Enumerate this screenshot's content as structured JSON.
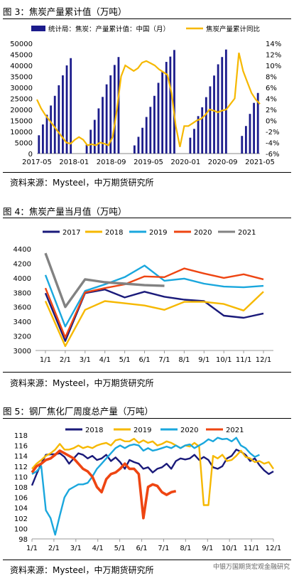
{
  "charts": [
    {
      "title": "图 3：焦炭产量累计值（万吨）",
      "source": "资料来源：Mysteel，中万期货研究所",
      "chart_data": {
        "type": "bar+line",
        "series": [
          {
            "name": "统计局：焦炭：产量累计值：中国（月）",
            "kind": "bar",
            "axis": "left",
            "color": "#1c1c8c",
            "values": [
              8300,
              13200,
              17600,
              21800,
              26200,
              31000,
              35500,
              40000,
              43300,
              null,
              null,
              null,
              4000,
              10800,
              15300,
              20500,
              25700,
              31400,
              35500,
              40200,
              43800,
              null,
              null,
              null,
              3700,
              7600,
              11700,
              16600,
              21200,
              26200,
              32100,
              37000,
              41600,
              44000,
              47000,
              null,
              null,
              null,
              7200,
              11200,
              17000,
              21000,
              25600,
              30500,
              35400,
              40500,
              43800,
              47200,
              null,
              null,
              null,
              8000,
              12500,
              18000,
              23000,
              27500
            ]
          },
          {
            "name": "焦炭产量累计同比",
            "kind": "line",
            "axis": "right",
            "color": "#f6b800",
            "values": [
              3.8,
              2.2,
              1.0,
              0.0,
              -1.0,
              -2.0,
              -3.0,
              -4.0,
              -4.2,
              -3.5,
              -3.0,
              -3.5,
              -4.5,
              -4.3,
              -4.5,
              -4.0,
              -4.2,
              -4.5,
              -3.0,
              2.0,
              8.0,
              10.0,
              9.5,
              9.0,
              9.5,
              10.5,
              10.8,
              10.4,
              10.0,
              9.3,
              8.8,
              8.3,
              5.0,
              -1.0,
              -4.8,
              -1.0,
              -1.0,
              -0.5,
              0.0,
              0.3,
              1.0,
              2.0,
              1.8,
              1.5,
              1.8,
              2.0,
              3.0,
              4.0,
              12.3,
              9.0,
              7.0,
              5.0,
              3.8,
              3.0
            ]
          }
        ],
        "x_tick_labels": [
          "2017-05",
          "2018-01",
          "2018-09",
          "2019-05",
          "2020-01",
          "2020-09",
          "2021-05"
        ],
        "y_left": {
          "min": 0,
          "max": 50000,
          "step": 5000
        },
        "y_right": {
          "min": -6,
          "max": 14,
          "step": 2,
          "suffix": "%"
        }
      }
    },
    {
      "title": "图 4：焦炭产量当月值（万吨）",
      "source": "资料来源：Mysteel，中万期货研究所",
      "chart_data": {
        "type": "line",
        "categories": [
          "1/1",
          "2/1",
          "3/1",
          "4/1",
          "5/1",
          "6/1",
          "7/1",
          "8/1",
          "9/1",
          "10/1",
          "11/1",
          "12/1"
        ],
        "ylim": [
          3000,
          4400
        ],
        "yticks": [
          3000,
          3200,
          3400,
          3600,
          3800,
          4000,
          4200,
          4400
        ],
        "series": [
          {
            "name": "2017",
            "color": "#1a1a7a",
            "values": [
              3790,
              3130,
              3790,
              3840,
              3730,
              3810,
              3740,
              3700,
              3680,
              3480,
              3450,
              3510
            ]
          },
          {
            "name": "2018",
            "color": "#f6b800",
            "values": [
              3680,
              3060,
              3560,
              3680,
              3650,
              3620,
              3560,
              3670,
              3670,
              3640,
              3550,
              3810
            ]
          },
          {
            "name": "2019",
            "color": "#1aa7dd",
            "values": [
              4040,
              3330,
              3820,
              3910,
              4010,
              4170,
              3960,
              3990,
              3920,
              3880,
              3870,
              3890
            ]
          },
          {
            "name": "2020",
            "color": "#ee4512",
            "values": [
              3860,
              3180,
              3800,
              3860,
              3910,
              4020,
              4010,
              4130,
              4060,
              4000,
              4050,
              3980
            ]
          },
          {
            "name": "2021",
            "color": "#828282",
            "values": [
              4340,
              3600,
              3980,
              3940,
              3920,
              3900,
              3890,
              null,
              null,
              null,
              null,
              null
            ]
          }
        ]
      }
    },
    {
      "title": "图 5：钢厂焦化厂周度总产量（万吨）",
      "source": "资料来源：Mysteel，中万期货研究所",
      "watermark": "中银万国期货宏观金融研究",
      "chart_data": {
        "type": "line",
        "x_tick_labels": [
          "1/1",
          "2/1",
          "3/1",
          "4/1",
          "5/1",
          "6/1",
          "7/1",
          "8/1",
          "9/1",
          "10/1",
          "11/1",
          "12/1"
        ],
        "ylim": [
          98,
          118
        ],
        "yticks": [
          98,
          100,
          102,
          104,
          106,
          108,
          110,
          112,
          114,
          116,
          118
        ],
        "series": [
          {
            "name": "2018",
            "color": "#1a1a7a",
            "values": [
              108.3,
              110.5,
              112.5,
              114.2,
              114.3,
              114.3,
              114.5,
              113.8,
              112.5,
              113.5,
              114.5,
              114.2,
              113.5,
              114.0,
              113.2,
              113.5,
              114.2,
              113.0,
              113.7,
              112.8,
              111.5,
              113.2,
              112.8,
              112.5,
              111.5,
              111.8,
              110.8,
              111.5,
              111.8,
              112.5,
              111.5,
              113.0,
              113.5,
              113.3,
              113.5,
              114.2,
              113.2,
              113.8,
              113.2,
              111.8,
              111.5,
              112.0,
              113.5,
              114.0,
              115.2,
              114.8,
              114.2,
              113.0,
              113.5,
              112.2,
              111.2,
              110.5,
              111.0
            ]
          },
          {
            "name": "2019",
            "color": "#f6b800",
            "values": [
              111.5,
              112.5,
              113.2,
              114.0,
              114.5,
              115.2,
              116.3,
              115.2,
              115.2,
              115.5,
              116.0,
              115.5,
              115.8,
              115.5,
              116.0,
              116.3,
              116.5,
              116.0,
              117.0,
              117.2,
              116.8,
              116.8,
              117.3,
              116.5,
              117.0,
              116.5,
              116.8,
              116.0,
              116.3,
              116.8,
              116.5,
              116.0,
              115.5,
              116.0,
              115.8,
              116.5,
              115.8,
              104.5,
              104.5,
              114.0,
              113.5,
              114.2,
              113.0,
              113.2,
              114.0,
              115.0,
              113.8,
              113.5,
              112.8,
              113.0,
              112.5,
              112.8,
              111.5
            ]
          },
          {
            "name": "2020",
            "color": "#1aa7dd",
            "values": [
              110.5,
              111.0,
              112.0,
              103.5,
              102.0,
              98.8,
              102.5,
              106.0,
              107.5,
              108.0,
              108.5,
              108.5,
              108.8,
              110.0,
              111.5,
              112.5,
              113.5,
              114.5,
              115.5,
              116.0,
              115.5,
              116.0,
              116.2,
              116.0,
              115.0,
              115.5,
              115.0,
              115.2,
              115.5,
              115.8,
              115.5,
              116.0,
              115.5,
              116.0,
              116.2,
              115.5,
              116.0,
              116.5,
              117.2,
              116.8,
              117.5,
              117.2,
              117.3,
              116.8,
              117.5,
              116.0,
              115.5,
              114.5,
              113.8,
              114.2
            ]
          },
          {
            "name": "2021",
            "color": "#ee4512",
            "values": [
              110.8,
              112.0,
              112.5,
              113.2,
              113.5,
              114.2,
              115.0,
              114.5,
              114.0,
              113.5,
              112.5,
              111.5,
              111.0,
              110.0,
              108.0,
              107.0,
              109.5,
              110.5,
              110.8,
              111.5,
              112.5,
              111.5,
              111.5,
              110.5,
              102.0,
              108.0,
              108.5,
              108.2,
              107.0,
              106.5,
              107.0,
              107.2
            ]
          }
        ]
      }
    }
  ]
}
